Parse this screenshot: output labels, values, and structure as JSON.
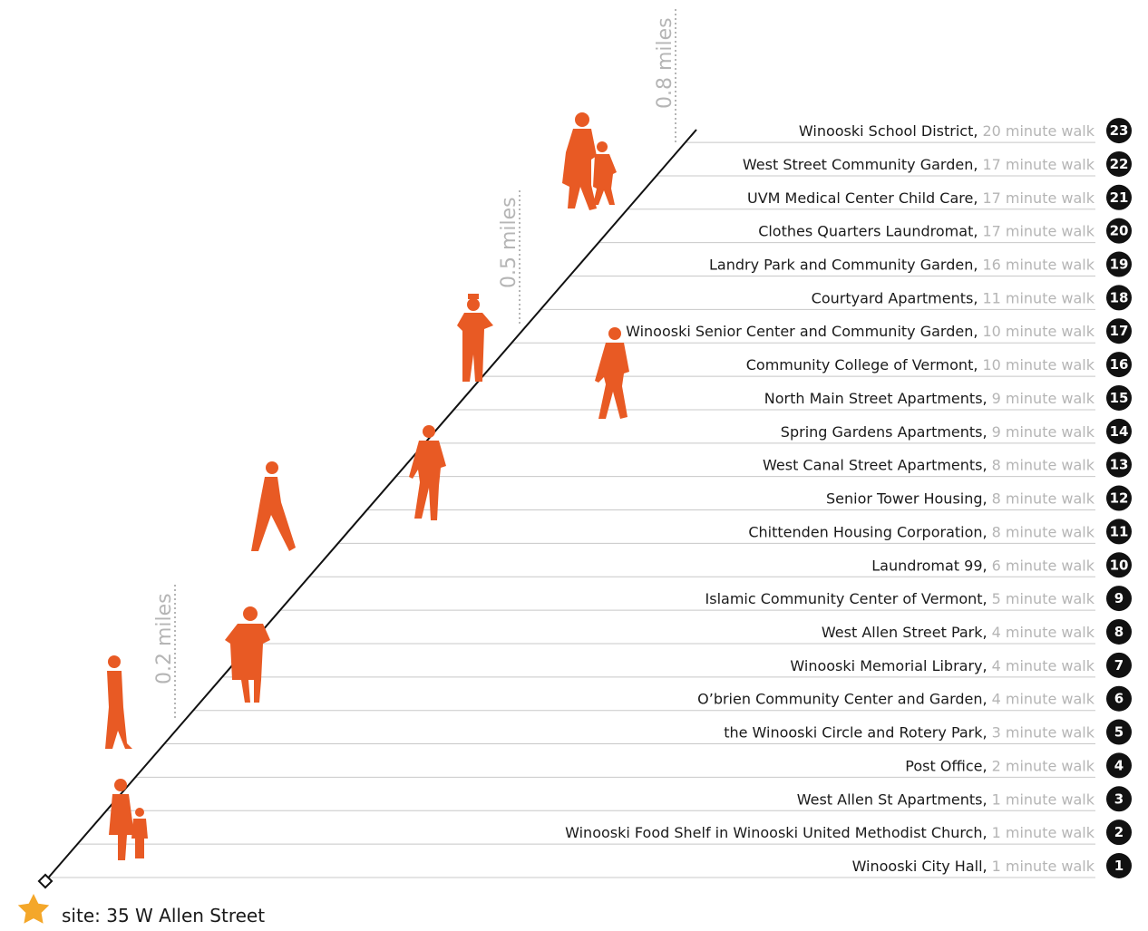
{
  "markers": [
    "0.2 miles",
    "0.5 miles",
    "0.8 miles"
  ],
  "site": "site: 35 W Allen Street",
  "items": [
    {
      "number": "1",
      "label": "Winooski City Hall,",
      "walk": "1 minute walk"
    },
    {
      "number": "2",
      "label": "Winooski Food Shelf in Winooski United Methodist Church,",
      "walk": "1 minute walk"
    },
    {
      "number": "3",
      "label": "West Allen St Apartments,",
      "walk": "1 minute walk"
    },
    {
      "number": "4",
      "label": "Post Office,",
      "walk": "2 minute walk"
    },
    {
      "number": "5",
      "label": "the Winooski Circle and Rotery Park,",
      "walk": "3 minute walk"
    },
    {
      "number": "6",
      "label": "O’brien Community Center and Garden,",
      "walk": "4 minute walk"
    },
    {
      "number": "7",
      "label": "Winooski Memorial Library,",
      "walk": "4 minute walk"
    },
    {
      "number": "8",
      "label": "West Allen Street Park,",
      "walk": "4 minute walk"
    },
    {
      "number": "9",
      "label": "Islamic Community Center of Vermont,",
      "walk": "5 minute walk"
    },
    {
      "number": "10",
      "label": "Laundromat 99,",
      "walk": "6 minute walk"
    },
    {
      "number": "11",
      "label": "Chittenden Housing Corporation,",
      "walk": "8 minute walk"
    },
    {
      "number": "12",
      "label": "Senior Tower Housing,",
      "walk": "8 minute walk"
    },
    {
      "number": "13",
      "label": "West Canal Street Apartments,",
      "walk": "8 minute walk"
    },
    {
      "number": "14",
      "label": "Spring Gardens Apartments,",
      "walk": "9 minute walk"
    },
    {
      "number": "15",
      "label": "North Main Street Apartments,",
      "walk": "9 minute walk"
    },
    {
      "number": "16",
      "label": "Community College of Vermont,",
      "walk": "10 minute walk"
    },
    {
      "number": "17",
      "label": "Winooski Senior Center and Community Garden,",
      "walk": "10 minute walk"
    },
    {
      "number": "18",
      "label": "Courtyard Apartments,",
      "walk": "11 minute walk"
    },
    {
      "number": "19",
      "label": "Landry Park and Community Garden,",
      "walk": "16 minute walk"
    },
    {
      "number": "20",
      "label": "Clothes Quarters Laundromat,",
      "walk": "17 minute walk"
    },
    {
      "number": "21",
      "label": "UVM Medical Center Child Care,",
      "walk": "17 minute walk"
    },
    {
      "number": "22",
      "label": "West Street Community Garden,",
      "walk": "17 minute walk"
    },
    {
      "number": "23",
      "label": "Winooski School District,",
      "walk": "20 minute walk"
    }
  ]
}
